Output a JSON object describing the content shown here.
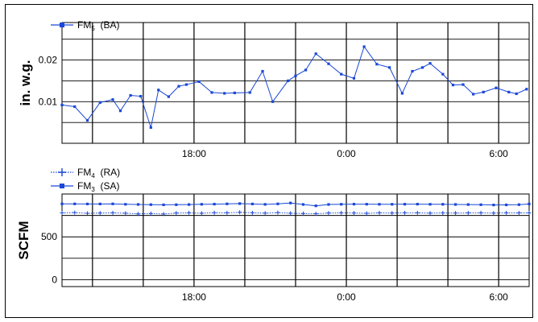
{
  "chart_data": [
    {
      "type": "line",
      "ylabel": "in. w.g.",
      "ylim": [
        0.0,
        0.029
      ],
      "yticks": [
        "0.01",
        "0.02"
      ],
      "ytick_values": [
        0.01,
        0.02
      ],
      "y_gridlines": [
        0.005,
        0.01,
        0.015,
        0.02,
        0.025
      ],
      "xlim": [
        12.8,
        31.2
      ],
      "xtick_labels": [
        "18:00",
        "0:00",
        "6:00"
      ],
      "xtick_values": [
        18,
        24,
        30
      ],
      "x_gridlines": [
        14,
        16,
        18,
        20,
        22,
        24,
        26,
        28,
        30
      ],
      "legend": [
        {
          "base": "FM",
          "sub": "5",
          "rest": " (BA)",
          "marker": "square",
          "dash": "solid"
        }
      ],
      "series": [
        {
          "name": "FM5 (BA)",
          "color": "#1a47d6",
          "x": [
            12.8,
            13.3,
            13.8,
            14.3,
            14.8,
            15.1,
            15.5,
            15.9,
            16.3,
            16.6,
            17.0,
            17.4,
            17.7,
            18.2,
            18.7,
            19.2,
            19.6,
            20.2,
            20.7,
            21.1,
            21.7,
            22.0,
            22.4,
            22.8,
            23.3,
            23.8,
            24.3,
            24.7,
            25.2,
            25.7,
            26.2,
            26.6,
            27.0,
            27.3,
            27.8,
            28.2,
            28.6,
            29.0,
            29.4,
            29.9,
            30.4,
            30.7,
            31.1
          ],
          "y": [
            0.0092,
            0.0088,
            0.0055,
            0.0098,
            0.0105,
            0.0078,
            0.0115,
            0.0113,
            0.0038,
            0.0128,
            0.0112,
            0.0137,
            0.0141,
            0.0148,
            0.0122,
            0.012,
            0.0121,
            0.0122,
            0.0173,
            0.01,
            0.015,
            0.0162,
            0.0176,
            0.0215,
            0.0191,
            0.0166,
            0.0156,
            0.0232,
            0.019,
            0.0182,
            0.012,
            0.0173,
            0.0182,
            0.0192,
            0.0166,
            0.014,
            0.0141,
            0.0118,
            0.0123,
            0.0133,
            0.0123,
            0.0119,
            0.013
          ]
        }
      ]
    },
    {
      "type": "line",
      "ylabel": "SCFM",
      "ylim": [
        -80,
        1000
      ],
      "yticks": [
        "0",
        "500"
      ],
      "ytick_values": [
        0,
        500
      ],
      "y_gridlines": [
        0,
        250,
        500,
        750
      ],
      "xlim": [
        12.8,
        31.2
      ],
      "xtick_labels": [
        "18:00",
        "0:00",
        "6:00"
      ],
      "xtick_values": [
        18,
        24,
        30
      ],
      "x_gridlines": [
        14,
        16,
        18,
        20,
        22,
        24,
        26,
        28,
        30
      ],
      "legend": [
        {
          "base": "FM",
          "sub": "4",
          "rest": " (RA)",
          "marker": "plus",
          "dash": "dotted"
        },
        {
          "base": "FM",
          "sub": "3",
          "rest": " (SA)",
          "marker": "square",
          "dash": "solid"
        }
      ],
      "series": [
        {
          "name": "FM4 (RA)",
          "color": "#1a47d6",
          "x": [
            12.8,
            13.3,
            13.8,
            14.3,
            14.8,
            15.3,
            15.8,
            16.3,
            16.8,
            17.3,
            17.8,
            18.3,
            18.8,
            19.3,
            19.8,
            20.3,
            20.8,
            21.3,
            21.8,
            22.3,
            22.8,
            23.3,
            23.8,
            24.3,
            24.8,
            25.3,
            25.8,
            26.3,
            26.8,
            27.3,
            27.8,
            28.3,
            28.8,
            29.3,
            29.8,
            30.3,
            30.8,
            31.2
          ],
          "y": [
            780,
            783,
            775,
            778,
            780,
            776,
            768,
            772,
            766,
            778,
            780,
            776,
            782,
            780,
            786,
            781,
            777,
            783,
            776,
            772,
            770,
            778,
            780,
            778,
            775,
            780,
            778,
            781,
            780,
            777,
            779,
            778,
            779,
            780,
            778,
            780,
            779,
            781
          ]
        },
        {
          "name": "FM3 (SA)",
          "color": "#1a47d6",
          "x": [
            12.8,
            13.3,
            13.8,
            14.3,
            14.8,
            15.3,
            15.8,
            16.3,
            16.8,
            17.3,
            17.8,
            18.3,
            18.8,
            19.3,
            19.8,
            20.3,
            20.8,
            21.3,
            21.8,
            22.3,
            22.8,
            23.3,
            23.8,
            24.3,
            24.8,
            25.3,
            25.8,
            26.3,
            26.8,
            27.3,
            27.8,
            28.3,
            28.8,
            29.3,
            29.8,
            30.3,
            30.8,
            31.2
          ],
          "y": [
            885,
            885,
            884,
            884,
            885,
            880,
            878,
            876,
            874,
            875,
            877,
            880,
            882,
            885,
            888,
            884,
            879,
            885,
            895,
            878,
            862,
            878,
            880,
            882,
            881,
            880,
            880,
            881,
            882,
            880,
            880,
            878,
            877,
            875,
            872,
            873,
            876,
            884
          ]
        }
      ]
    }
  ]
}
